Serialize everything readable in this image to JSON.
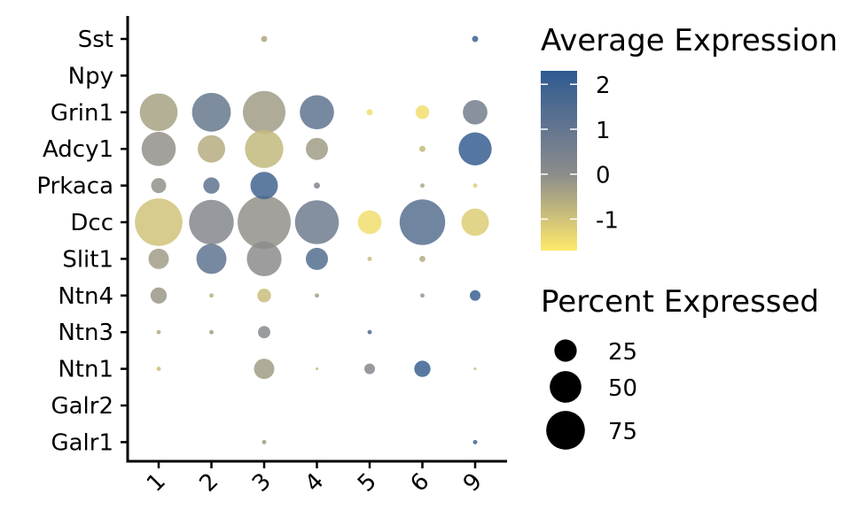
{
  "chart_data": {
    "type": "dotplot",
    "title": "",
    "xlabel": "",
    "ylabel": "",
    "categories": [
      "1",
      "2",
      "3",
      "4",
      "5",
      "6",
      "9"
    ],
    "genes": [
      "Sst",
      "Npy",
      "Grin1",
      "Adcy1",
      "Prkaca",
      "Dcc",
      "Slit1",
      "Ntn4",
      "Ntn3",
      "Ntn1",
      "Galr2",
      "Galr1"
    ],
    "points": [
      {
        "gene": "Sst",
        "cluster": "3",
        "pct": 1,
        "avg_exp": -0.5
      },
      {
        "gene": "Sst",
        "cluster": "9",
        "pct": 1,
        "avg_exp": 2.0
      },
      {
        "gene": "Grin1",
        "cluster": "1",
        "pct": 38,
        "avg_exp": -0.4
      },
      {
        "gene": "Grin1",
        "cluster": "2",
        "pct": 40,
        "avg_exp": 0.9
      },
      {
        "gene": "Grin1",
        "cluster": "3",
        "pct": 48,
        "avg_exp": -0.3
      },
      {
        "gene": "Grin1",
        "cluster": "4",
        "pct": 31,
        "avg_exp": 1.1
      },
      {
        "gene": "Grin1",
        "cluster": "5",
        "pct": 1,
        "avg_exp": -1.5
      },
      {
        "gene": "Grin1",
        "cluster": "6",
        "pct": 5,
        "avg_exp": -1.5
      },
      {
        "gene": "Grin1",
        "cluster": "9",
        "pct": 16,
        "avg_exp": 0.6
      },
      {
        "gene": "Adcy1",
        "cluster": "1",
        "pct": 31,
        "avg_exp": -0.1
      },
      {
        "gene": "Adcy1",
        "cluster": "2",
        "pct": 20,
        "avg_exp": -0.6
      },
      {
        "gene": "Adcy1",
        "cluster": "3",
        "pct": 39,
        "avg_exp": -0.8
      },
      {
        "gene": "Adcy1",
        "cluster": "4",
        "pct": 13,
        "avg_exp": -0.3
      },
      {
        "gene": "Adcy1",
        "cluster": "6",
        "pct": 1,
        "avg_exp": -0.8
      },
      {
        "gene": "Adcy1",
        "cluster": "9",
        "pct": 29,
        "avg_exp": 2.1
      },
      {
        "gene": "Prkaca",
        "cluster": "1",
        "pct": 6,
        "avg_exp": -0.1
      },
      {
        "gene": "Prkaca",
        "cluster": "2",
        "pct": 7,
        "avg_exp": 1.1
      },
      {
        "gene": "Prkaca",
        "cluster": "3",
        "pct": 20,
        "avg_exp": 1.8
      },
      {
        "gene": "Prkaca",
        "cluster": "4",
        "pct": 1,
        "avg_exp": 0.3
      },
      {
        "gene": "Prkaca",
        "cluster": "6",
        "pct": 0.5,
        "avg_exp": -0.5
      },
      {
        "gene": "Prkaca",
        "cluster": "9",
        "pct": 0.5,
        "avg_exp": -1.2
      },
      {
        "gene": "Dcc",
        "cluster": "1",
        "pct": 60,
        "avg_exp": -1.0
      },
      {
        "gene": "Dcc",
        "cluster": "2",
        "pct": 53,
        "avg_exp": 0.2
      },
      {
        "gene": "Dcc",
        "cluster": "3",
        "pct": 75,
        "avg_exp": -0.1
      },
      {
        "gene": "Dcc",
        "cluster": "4",
        "pct": 51,
        "avg_exp": 0.7
      },
      {
        "gene": "Dcc",
        "cluster": "5",
        "pct": 15,
        "avg_exp": -1.5
      },
      {
        "gene": "Dcc",
        "cluster": "6",
        "pct": 55,
        "avg_exp": 1.3
      },
      {
        "gene": "Dcc",
        "cluster": "9",
        "pct": 20,
        "avg_exp": -1.2
      },
      {
        "gene": "Slit1",
        "cluster": "1",
        "pct": 11,
        "avg_exp": -0.3
      },
      {
        "gene": "Slit1",
        "cluster": "2",
        "pct": 24,
        "avg_exp": 1.1
      },
      {
        "gene": "Slit1",
        "cluster": "3",
        "pct": 32,
        "avg_exp": 0.0
      },
      {
        "gene": "Slit1",
        "cluster": "4",
        "pct": 13,
        "avg_exp": 1.4
      },
      {
        "gene": "Slit1",
        "cluster": "5",
        "pct": 0.5,
        "avg_exp": -0.9
      },
      {
        "gene": "Slit1",
        "cluster": "6",
        "pct": 1,
        "avg_exp": -0.6
      },
      {
        "gene": "Ntn4",
        "cluster": "1",
        "pct": 7,
        "avg_exp": -0.2
      },
      {
        "gene": "Ntn4",
        "cluster": "2",
        "pct": 0.5,
        "avg_exp": -0.7
      },
      {
        "gene": "Ntn4",
        "cluster": "3",
        "pct": 5,
        "avg_exp": -0.9
      },
      {
        "gene": "Ntn4",
        "cluster": "4",
        "pct": 0.5,
        "avg_exp": -0.3
      },
      {
        "gene": "Ntn4",
        "cluster": "6",
        "pct": 0.5,
        "avg_exp": -0.2
      },
      {
        "gene": "Ntn4",
        "cluster": "9",
        "pct": 3,
        "avg_exp": 2.0
      },
      {
        "gene": "Ntn3",
        "cluster": "1",
        "pct": 0.5,
        "avg_exp": -0.6
      },
      {
        "gene": "Ntn3",
        "cluster": "2",
        "pct": 0.5,
        "avg_exp": -0.3
      },
      {
        "gene": "Ntn3",
        "cluster": "3",
        "pct": 4,
        "avg_exp": 0.1
      },
      {
        "gene": "Ntn3",
        "cluster": "5",
        "pct": 0.5,
        "avg_exp": 1.6
      },
      {
        "gene": "Ntn1",
        "cluster": "1",
        "pct": 0.5,
        "avg_exp": -0.9
      },
      {
        "gene": "Ntn1",
        "cluster": "3",
        "pct": 11,
        "avg_exp": -0.3
      },
      {
        "gene": "Ntn1",
        "cluster": "4",
        "pct": 0.2,
        "avg_exp": -0.8
      },
      {
        "gene": "Ntn1",
        "cluster": "5",
        "pct": 3,
        "avg_exp": 0.2
      },
      {
        "gene": "Ntn1",
        "cluster": "6",
        "pct": 7,
        "avg_exp": 2.0
      },
      {
        "gene": "Ntn1",
        "cluster": "9",
        "pct": 0.2,
        "avg_exp": -0.9
      },
      {
        "gene": "Galr1",
        "cluster": "3",
        "pct": 0.5,
        "avg_exp": -0.3
      },
      {
        "gene": "Galr1",
        "cluster": "9",
        "pct": 0.5,
        "avg_exp": 1.9
      }
    ],
    "color_scale": {
      "low": "#FFE96B",
      "mid": "#8C8C8C",
      "high": "#2E5A92",
      "domain": [
        -1.7,
        0,
        2.3
      ]
    },
    "color_legend": {
      "title": "Average Expression",
      "ticks": [
        "2",
        "1",
        "0",
        "-1"
      ]
    },
    "size_legend": {
      "title": "Percent Expressed",
      "values": [
        25,
        50,
        75
      ],
      "labels": [
        "25",
        "50",
        "75"
      ]
    },
    "grid": false,
    "legend_position": "right"
  }
}
